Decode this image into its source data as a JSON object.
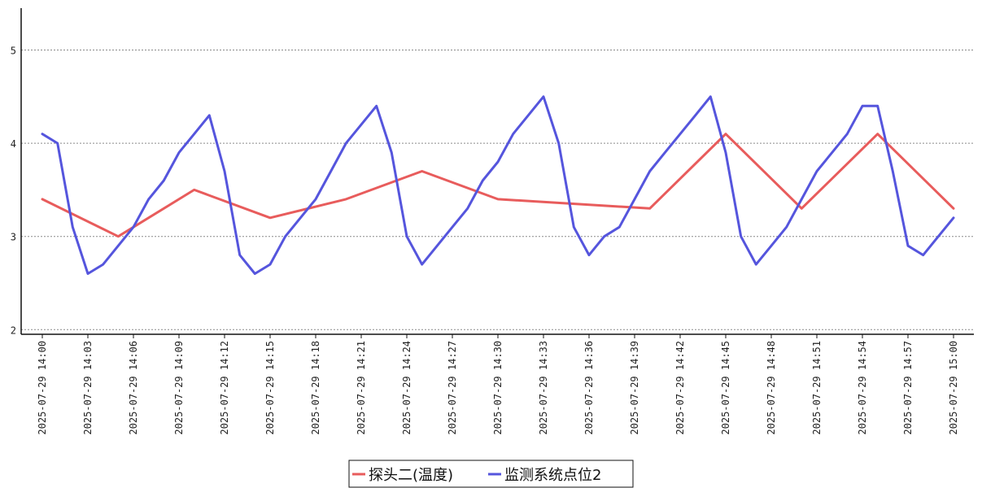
{
  "chart_data": {
    "type": "line",
    "ylim": [
      1.95,
      5.45
    ],
    "y_ticks": [
      2,
      3,
      4,
      5
    ],
    "y_tick_labels": [
      "2",
      "3",
      "4",
      "5"
    ],
    "grid": "horizontal-dotted",
    "legend_position": "bottom-center",
    "x_ticks": [
      "2025-07-29 14:00",
      "2025-07-29 14:03",
      "2025-07-29 14:06",
      "2025-07-29 14:09",
      "2025-07-29 14:12",
      "2025-07-29 14:15",
      "2025-07-29 14:18",
      "2025-07-29 14:21",
      "2025-07-29 14:24",
      "2025-07-29 14:27",
      "2025-07-29 14:30",
      "2025-07-29 14:33",
      "2025-07-29 14:36",
      "2025-07-29 14:39",
      "2025-07-29 14:42",
      "2025-07-29 14:45",
      "2025-07-29 14:48",
      "2025-07-29 14:51",
      "2025-07-29 14:54",
      "2025-07-29 14:57",
      "2025-07-29 15:00"
    ],
    "series": [
      {
        "name": "探头二(温度)",
        "color": "#e85c5c",
        "x": [
          "2025-07-29 14:00",
          "2025-07-29 14:05",
          "2025-07-29 14:10",
          "2025-07-29 14:15",
          "2025-07-29 14:20",
          "2025-07-29 14:25",
          "2025-07-29 14:30",
          "2025-07-29 14:40",
          "2025-07-29 14:45",
          "2025-07-29 14:50",
          "2025-07-29 14:55",
          "2025-07-29 15:00"
        ],
        "values": [
          3.4,
          3.0,
          3.5,
          3.2,
          3.4,
          3.7,
          3.4,
          3.3,
          4.1,
          3.3,
          4.1,
          3.3
        ]
      },
      {
        "name": "监测系统点位2",
        "color": "#5555dd",
        "x": [
          "2025-07-29 14:00",
          "2025-07-29 14:01",
          "2025-07-29 14:02",
          "2025-07-29 14:03",
          "2025-07-29 14:04",
          "2025-07-29 14:05",
          "2025-07-29 14:06",
          "2025-07-29 14:07",
          "2025-07-29 14:08",
          "2025-07-29 14:09",
          "2025-07-29 14:10",
          "2025-07-29 14:11",
          "2025-07-29 14:12",
          "2025-07-29 14:13",
          "2025-07-29 14:14",
          "2025-07-29 14:15",
          "2025-07-29 14:16",
          "2025-07-29 14:17",
          "2025-07-29 14:18",
          "2025-07-29 14:19",
          "2025-07-29 14:20",
          "2025-07-29 14:21",
          "2025-07-29 14:22",
          "2025-07-29 14:23",
          "2025-07-29 14:24",
          "2025-07-29 14:25",
          "2025-07-29 14:26",
          "2025-07-29 14:27",
          "2025-07-29 14:28",
          "2025-07-29 14:29",
          "2025-07-29 14:30",
          "2025-07-29 14:31",
          "2025-07-29 14:32",
          "2025-07-29 14:33",
          "2025-07-29 14:34",
          "2025-07-29 14:35",
          "2025-07-29 14:36",
          "2025-07-29 14:37",
          "2025-07-29 14:38",
          "2025-07-29 14:39",
          "2025-07-29 14:40",
          "2025-07-29 14:41",
          "2025-07-29 14:42",
          "2025-07-29 14:43",
          "2025-07-29 14:44",
          "2025-07-29 14:45",
          "2025-07-29 14:46",
          "2025-07-29 14:47",
          "2025-07-29 14:48",
          "2025-07-29 14:49",
          "2025-07-29 14:50",
          "2025-07-29 14:51",
          "2025-07-29 14:52",
          "2025-07-29 14:53",
          "2025-07-29 14:54",
          "2025-07-29 14:55",
          "2025-07-29 14:56",
          "2025-07-29 14:57",
          "2025-07-29 14:58",
          "2025-07-29 14:59",
          "2025-07-29 15:00"
        ],
        "values": [
          4.1,
          4.0,
          3.1,
          2.6,
          2.7,
          2.9,
          3.1,
          3.4,
          3.6,
          3.9,
          4.1,
          4.3,
          3.7,
          2.8,
          2.6,
          2.7,
          3.0,
          3.2,
          3.4,
          3.7,
          4.0,
          4.2,
          4.4,
          3.9,
          3.0,
          2.7,
          2.9,
          3.1,
          3.3,
          3.6,
          3.8,
          4.1,
          4.3,
          4.5,
          4.0,
          3.1,
          2.8,
          3.0,
          3.1,
          3.4,
          3.7,
          3.9,
          4.1,
          4.3,
          4.5,
          3.9,
          3.0,
          2.7,
          2.9,
          3.1,
          3.4,
          3.7,
          3.9,
          4.1,
          4.4,
          4.4,
          3.7,
          2.9,
          2.8,
          3.0,
          3.2
        ]
      }
    ]
  }
}
